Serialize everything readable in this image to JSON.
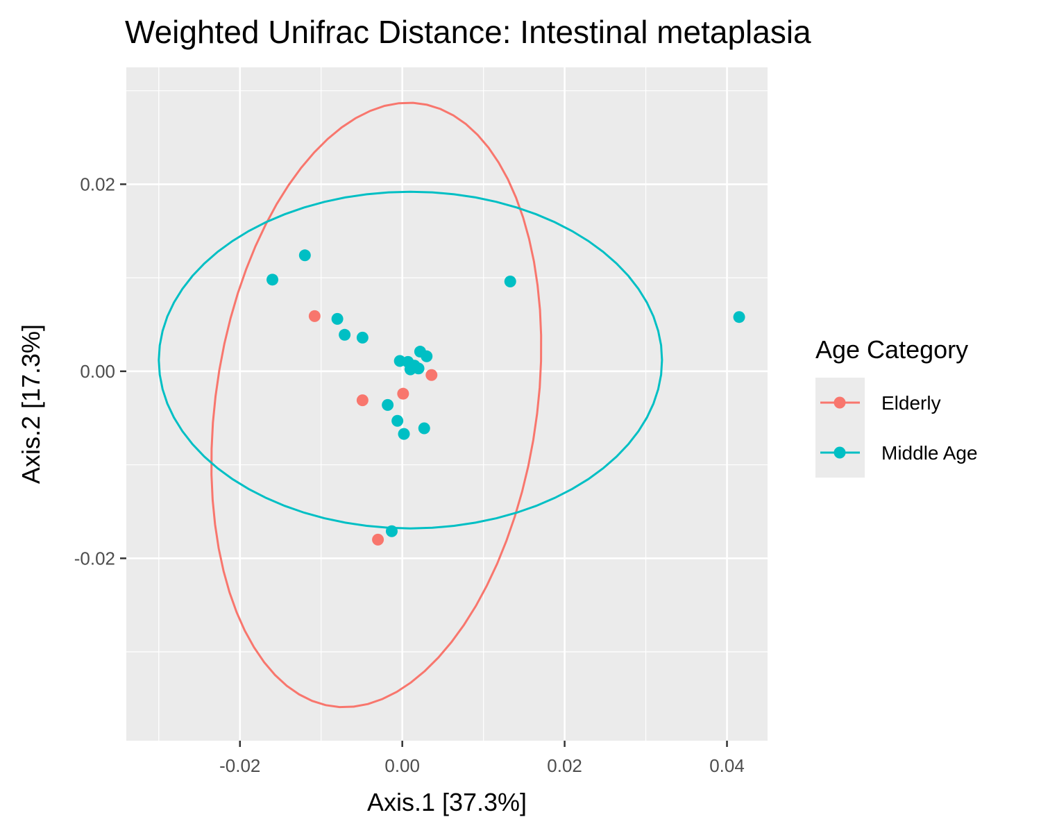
{
  "chart_data": {
    "type": "scatter",
    "title": "Weighted Unifrac Distance: Intestinal metaplasia",
    "xlabel": "Axis.1   [37.3%]",
    "ylabel": "Axis.2   [17.3%]",
    "xlim": [
      -0.034,
      0.045
    ],
    "ylim": [
      -0.0395,
      0.0325
    ],
    "x_ticks": [
      -0.02,
      0.0,
      0.02,
      0.04
    ],
    "x_tick_labels": [
      "-0.02",
      "0.00",
      "0.02",
      "0.04"
    ],
    "y_ticks": [
      -0.02,
      0.0,
      0.02
    ],
    "y_tick_labels": [
      "-0.02",
      "0.00",
      "0.02"
    ],
    "grid": true,
    "legend": {
      "title": "Age Category",
      "position": "right"
    },
    "series": [
      {
        "name": "Elderly",
        "color": "#F8766D",
        "points": [
          {
            "x": -0.0108,
            "y": 0.0059
          },
          {
            "x": -0.0049,
            "y": -0.0031
          },
          {
            "x": 0.0001,
            "y": -0.0024
          },
          {
            "x": 0.0036,
            "y": -0.0004
          },
          {
            "x": -0.003,
            "y": -0.018
          }
        ],
        "ellipse": {
          "cx": -0.0032,
          "cy": -0.0036,
          "rx": 0.0197,
          "ry": 0.0327,
          "rotation_deg": -11
        }
      },
      {
        "name": "Middle Age",
        "color": "#00BFC4",
        "points": [
          {
            "x": -0.016,
            "y": 0.0098
          },
          {
            "x": -0.012,
            "y": 0.0124
          },
          {
            "x": -0.008,
            "y": 0.0056
          },
          {
            "x": -0.0071,
            "y": 0.0039
          },
          {
            "x": -0.0049,
            "y": 0.0036
          },
          {
            "x": -0.0003,
            "y": 0.0011
          },
          {
            "x": 0.0007,
            "y": 0.001
          },
          {
            "x": 0.001,
            "y": 0.0002
          },
          {
            "x": 0.0015,
            "y": 0.0006
          },
          {
            "x": 0.002,
            "y": 0.0003
          },
          {
            "x": 0.0022,
            "y": 0.0021
          },
          {
            "x": 0.003,
            "y": 0.0016
          },
          {
            "x": -0.0018,
            "y": -0.0036
          },
          {
            "x": -0.0006,
            "y": -0.0053
          },
          {
            "x": 0.0002,
            "y": -0.0067
          },
          {
            "x": 0.0027,
            "y": -0.0061
          },
          {
            "x": -0.0013,
            "y": -0.0171
          },
          {
            "x": 0.0133,
            "y": 0.0096
          },
          {
            "x": 0.0415,
            "y": 0.0058
          }
        ],
        "ellipse": {
          "cx": 0.001,
          "cy": 0.0012,
          "rx": 0.031,
          "ry": 0.018,
          "rotation_deg": 0
        }
      }
    ]
  }
}
